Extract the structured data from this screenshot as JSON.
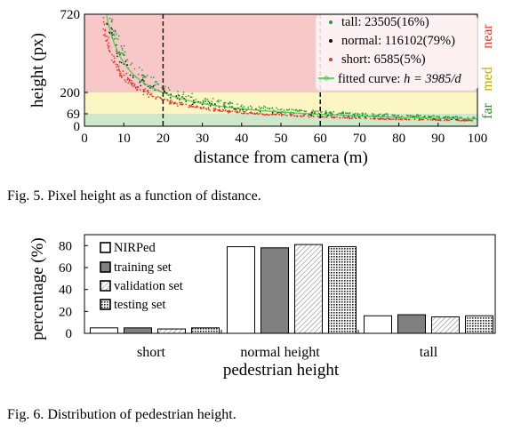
{
  "fig5": {
    "caption": "Fig. 5.   Pixel height as a function of distance.",
    "chart_data": {
      "type": "scatter",
      "xlabel": "distance from camera (m)",
      "ylabel": "height (px)",
      "xlim": [
        0,
        100
      ],
      "ylim": [
        0,
        720
      ],
      "xticks": [
        0,
        10,
        20,
        30,
        40,
        50,
        60,
        70,
        80,
        90,
        100
      ],
      "yticks": [
        0,
        69,
        200,
        720
      ],
      "ytick_labels": [
        "0",
        "69",
        "200",
        "720"
      ],
      "vlines": [
        20,
        60
      ],
      "bands": [
        {
          "label": "far",
          "from": 0,
          "to": 69,
          "color": "#cfe8c9",
          "label_color": "#2e8b2e"
        },
        {
          "label": "med",
          "from": 69,
          "to": 200,
          "color": "#fbf6c3",
          "label_color": "#c8a800"
        },
        {
          "label": "near",
          "from": 200,
          "to": 720,
          "color": "#f8c8c8",
          "label_color": "#e03a2e"
        }
      ],
      "series": [
        {
          "name": "tall: 23505(16%)",
          "marker": "dot",
          "color": "#2a9a3a",
          "height_factor": 1.2
        },
        {
          "name": "normal: 116102(79%)",
          "marker": "dot",
          "color": "#111111",
          "height_factor": 1.0
        },
        {
          "name": "short: 6585(5%)",
          "marker": "dot",
          "color": "#e23b2c",
          "height_factor": 0.78
        }
      ],
      "fit": {
        "label": "fitted curve: h = 3985/d",
        "label_prefix": "fitted curve: ",
        "label_math": "h = 3985/d",
        "k": 3985,
        "color": "#4cd44c"
      }
    }
  },
  "fig6": {
    "caption": "Fig. 6.   Distribution of pedestrian height.",
    "chart_data": {
      "type": "bar",
      "xlabel": "pedestrian height",
      "ylabel": "percentage (%)",
      "ylim": [
        0,
        90
      ],
      "yticks": [
        0,
        20,
        40,
        60,
        80
      ],
      "categories": [
        "short",
        "normal height",
        "tall"
      ],
      "series": [
        {
          "name": "NIRPed",
          "pattern": "white",
          "values": [
            5,
            79,
            16
          ]
        },
        {
          "name": "training set",
          "pattern": "gray",
          "values": [
            5,
            78,
            17
          ]
        },
        {
          "name": "validation set",
          "pattern": "hatch",
          "values": [
            4,
            81,
            15
          ]
        },
        {
          "name": "testing set",
          "pattern": "dots",
          "values": [
            5,
            79,
            16
          ]
        }
      ]
    }
  }
}
